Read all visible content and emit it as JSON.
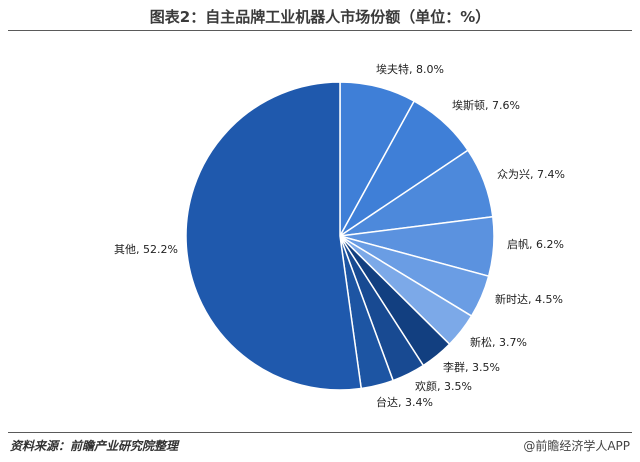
{
  "title": "图表2：自主品牌工业机器人市场份额（单位：%）",
  "source": "资料来源：前瞻产业研究院整理",
  "brand": "@前瞻经济学人APP",
  "chart_data": {
    "type": "pie",
    "title": "图表2：自主品牌工业机器人市场份额（单位：%）",
    "slices": [
      {
        "name": "埃夫特",
        "value": 8.0,
        "label": "埃夫特, 8.0%",
        "color": "#3f7fd7"
      },
      {
        "name": "埃斯顿",
        "value": 7.6,
        "label": "埃斯顿, 7.6%",
        "color": "#3f7fd7"
      },
      {
        "name": "众为兴",
        "value": 7.4,
        "label": "众为兴, 7.4%",
        "color": "#4d89db"
      },
      {
        "name": "启帆",
        "value": 6.2,
        "label": "启帆, 6.2%",
        "color": "#5b92df"
      },
      {
        "name": "新时达",
        "value": 4.5,
        "label": "新时达, 4.5%",
        "color": "#6a9de4"
      },
      {
        "name": "新松",
        "value": 3.7,
        "label": "新松, 3.7%",
        "color": "#7ca9e8"
      },
      {
        "name": "李群",
        "value": 3.5,
        "label": "李群, 3.5%",
        "color": "#123f80"
      },
      {
        "name": "欢颜",
        "value": 3.5,
        "label": "欢颜, 3.5%",
        "color": "#184a92"
      },
      {
        "name": "台达",
        "value": 3.4,
        "label": "台达, 3.4%",
        "color": "#1d55a3"
      },
      {
        "name": "其他",
        "value": 52.2,
        "label": "其他, 52.2%",
        "color": "#1f59ad"
      }
    ]
  }
}
